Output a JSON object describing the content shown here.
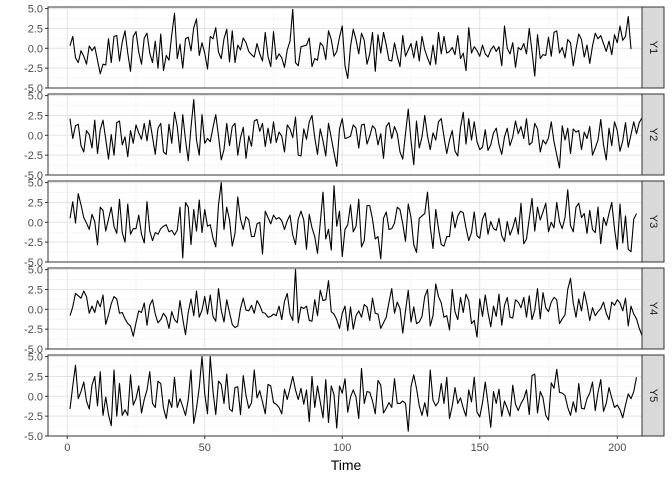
{
  "chart_data": {
    "type": "line",
    "xlabel": "Time",
    "x_ticks": [
      0,
      50,
      100,
      150,
      200
    ],
    "y_ticks": [
      -5.0,
      -2.5,
      0.0,
      2.5,
      5.0
    ],
    "y_tick_labels": [
      "-5.0",
      "-2.5",
      "0.0",
      "2.5",
      "5.0"
    ],
    "xlim": [
      -7,
      209
    ],
    "ylim": [
      -5.0,
      5.2
    ],
    "grid": true,
    "line_color": "#000000",
    "facet_strip_color": "#d9d9d9",
    "x_start": 1,
    "series": [
      {
        "name": "Y1",
        "values": [
          0.3,
          1.5,
          -1.2,
          -1.8,
          -0.3,
          -1.0,
          -2.0,
          0.3,
          -0.3,
          0.2,
          -1.5,
          -3.2,
          -2.0,
          -2.1,
          1.2,
          -1.8,
          1.5,
          1.6,
          -1.6,
          0.8,
          2.2,
          -0.6,
          -2.9,
          1.5,
          2.1,
          -0.5,
          -2.0,
          1.3,
          1.9,
          -0.6,
          -1.8,
          0.9,
          -2.5,
          1.8,
          -2.8,
          -0.9,
          -1.5,
          1.7,
          4.4,
          -1.3,
          0.5,
          -2.5,
          1.2,
          1.4,
          -0.3,
          2.6,
          3.7,
          -0.9,
          0.7,
          -0.6,
          -2.6,
          1.5,
          1.2,
          2.6,
          -0.5,
          -1.3,
          1.2,
          2.4,
          -1.7,
          2.2,
          -1.8,
          0.4,
          -0.2,
          1.3,
          0.7,
          -0.4,
          -0.8,
          -1.1,
          0.6,
          -0.7,
          -1.6,
          2.0,
          -1.0,
          -2.3,
          2.1,
          -1.4,
          -0.7,
          -1.2,
          -2.4,
          -0.2,
          0.9,
          4.9,
          -1.8,
          -2.2,
          0.2,
          0.3,
          0.4,
          1.3,
          -2.3,
          -1.3,
          -1.5,
          0.7,
          0.3,
          -1.4,
          2.2,
          1.1,
          -1.0,
          -0.4,
          1.4,
          2.8,
          -2.2,
          -3.8,
          0.2,
          2.4,
          1.1,
          -0.7,
          1.9,
          1.0,
          -2.0,
          -0.7,
          2.0,
          -2.9,
          1.7,
          -0.6,
          2.0,
          0.4,
          -1.5,
          -1.6,
          0.7,
          -1.0,
          -2.3,
          1.6,
          -1.0,
          -0.2,
          0.6,
          -1.2,
          0.9,
          -1.6,
          1.5,
          -0.2,
          -1.2,
          -2.1,
          0.4,
          -2.0,
          2.0,
          -0.7,
          1.5,
          -0.6,
          -0.4,
          0.1,
          -0.8,
          1.6,
          -1.3,
          -0.6,
          -2.8,
          2.6,
          -0.6,
          0.2,
          -0.3,
          -1.0,
          0.4,
          -0.7,
          -1.1,
          -0.2,
          0.3,
          -0.4,
          0.2,
          -2.2,
          2.8,
          0.0,
          -0.7,
          0.7,
          -2.4,
          0.1,
          -0.2,
          0.6,
          -0.7,
          2.5,
          -0.4,
          -3.5,
          1.7,
          -1.3,
          -0.8,
          -0.9,
          1.4,
          -1.0,
          2.0,
          2.2,
          -0.6,
          0.1,
          -1.2,
          1.1,
          0.7,
          -2.2,
          -0.1,
          1.8,
          1.1,
          -1.1,
          0.4,
          -1.9,
          0.3,
          1.9,
          1.2,
          1.6,
          0.6,
          -0.4,
          0.9,
          -0.8,
          1.7,
          0.7,
          2.8,
          1.0,
          1.5,
          4.0,
          -0.1
        ]
      },
      {
        "name": "Y2",
        "values": [
          2.1,
          -0.4,
          1.2,
          1.4,
          -1.3,
          -2.1,
          0.6,
          0.1,
          -1.6,
          1.9,
          -2.3,
          0.7,
          1.9,
          -0.5,
          -3.0,
          0.1,
          -2.5,
          1.6,
          1.8,
          -1.2,
          -0.2,
          -2.7,
          0.6,
          -1.0,
          1.3,
          0.3,
          -0.5,
          1.5,
          -0.7,
          1.9,
          -0.2,
          -2.4,
          0.9,
          1.5,
          -2.1,
          -2.4,
          1.4,
          -1.0,
          2.9,
          1.1,
          -2.2,
          2.6,
          -0.6,
          -3.2,
          1.0,
          4.5,
          -0.6,
          -2.5,
          2.6,
          -1.0,
          -0.4,
          -0.8,
          1.0,
          2.6,
          -0.1,
          -3.1,
          -1.8,
          1.5,
          -1.3,
          1.1,
          1.5,
          -2.5,
          -0.3,
          1.0,
          -2.9,
          -0.1,
          -1.4,
          1.8,
          2.0,
          0.5,
          1.5,
          -1.4,
          0.9,
          -1.0,
          1.7,
          -0.9,
          0.4,
          -0.1,
          -2.1,
          1.3,
          0.8,
          -0.3,
          2.3,
          -2.5,
          -2.6,
          0.8,
          -0.5,
          1.7,
          2.5,
          -0.3,
          -2.4,
          0.8,
          -0.7,
          -2.6,
          1.5,
          -0.3,
          -2.2,
          -3.9,
          0.8,
          2.1,
          -0.4,
          -0.3,
          -0.1,
          1.3,
          0.9,
          -1.6,
          1.3,
          1.4,
          -1.1,
          -0.1,
          1.2,
          0.8,
          -1.2,
          0.2,
          -2.9,
          1.1,
          1.6,
          -0.4,
          1.1,
          0.2,
          -2.1,
          -3.0,
          0.2,
          3.3,
          -0.7,
          -3.7,
          1.8,
          -1.6,
          -0.2,
          2.5,
          -0.1,
          -1.8,
          0.3,
          -0.6,
          1.7,
          2.1,
          -0.2,
          -2.3,
          -0.6,
          0.6,
          -2.0,
          -2.6,
          1.0,
          2.9,
          -1.1,
          2.1,
          -0.6,
          1.7,
          -0.8,
          -1.8,
          -1.5,
          0.7,
          -1.9,
          -1.2,
          0.3,
          0.9,
          -1.2,
          -2.4,
          -0.2,
          0.9,
          -1.3,
          -0.2,
          1.8,
          0.2,
          1.1,
          -0.4,
          2.1,
          -1.2,
          -0.9,
          1.5,
          0.8,
          -2.1,
          -0.6,
          -1.1,
          -0.3,
          1.7,
          -0.8,
          -2.5,
          -4.1,
          1.2,
          -0.6,
          0.9,
          -2.3,
          0.8,
          0.4,
          0.6,
          -1.8,
          0.4,
          -0.4,
          1.1,
          -2.5,
          -1.6,
          -0.6,
          2.0,
          -1.2,
          -3.1,
          0.9,
          -1.3,
          1.7,
          0.6,
          -2.0,
          -0.7,
          1.6,
          -1.5,
          0.1,
          1.7,
          0.2,
          1.6,
          2.2
        ]
      },
      {
        "name": "Y3",
        "values": [
          0.5,
          2.6,
          -0.1,
          3.6,
          2.2,
          0.6,
          -0.1,
          -0.9,
          1.0,
          0.1,
          -2.8,
          1.9,
          1.5,
          -1.1,
          0.4,
          1.9,
          -0.5,
          -1.4,
          2.9,
          -1.3,
          -2.5,
          2.3,
          -1.5,
          -0.8,
          -0.8,
          0.9,
          -1.5,
          -2.6,
          2.6,
          -1.1,
          -2.3,
          -1.3,
          -1.5,
          -0.8,
          -0.5,
          -0.3,
          -1.2,
          -1.0,
          -1.6,
          -1.0,
          1.9,
          -4.5,
          2.5,
          1.9,
          -2.8,
          1.6,
          -1.1,
          2.8,
          -1.3,
          1.6,
          -0.5,
          -0.3,
          -2.0,
          -3.1,
          2.2,
          5.0,
          -0.9,
          1.9,
          0.3,
          -3.0,
          -1.4,
          3.2,
          0.4,
          -0.9,
          0.7,
          0.3,
          -1.8,
          -1.8,
          -0.2,
          0.0,
          -4.0,
          1.4,
          0.6,
          -0.2,
          0.9,
          0.4,
          0.6,
          0.2,
          -0.9,
          0.2,
          0.9,
          -1.6,
          -2.8,
          0.4,
          1.4,
          0.3,
          -3.4,
          1.0,
          -0.7,
          -1.8,
          -3.9,
          -0.1,
          3.8,
          -2.1,
          -0.9,
          -3.5,
          4.6,
          -0.5,
          1.4,
          -4.3,
          -0.9,
          -0.3,
          2.2,
          -1.2,
          -0.5,
          2.9,
          -3.1,
          -2.3,
          2.1,
          2.1,
          0.4,
          -2.1,
          -1.8,
          -4.6,
          0.5,
          1.3,
          -0.9,
          -0.8,
          -0.1,
          1.9,
          1.6,
          -0.2,
          -2.4,
          2.3,
          0.6,
          -2.8,
          -3.8,
          0.5,
          0.8,
          1.1,
          3.8,
          -0.6,
          -3.3,
          1.6,
          -0.8,
          -2.8,
          -3.0,
          -1.8,
          -1.8,
          1.3,
          -0.7,
          0.8,
          1.4,
          1.2,
          -0.7,
          -2.3,
          -1.3,
          1.3,
          -1.7,
          -2.0,
          0.4,
          1.2,
          -1.5,
          0.1,
          -0.8,
          -1.0,
          0.5,
          -1.7,
          -2.4,
          0.1,
          -1.6,
          -0.7,
          0.6,
          -1.5,
          2.4,
          -2.7,
          -2.1,
          0.5,
          3.0,
          -1.1,
          1.9,
          0.3,
          1.3,
          2.4,
          -1.2,
          0.0,
          -0.7,
          2.5,
          0.1,
          -0.8,
          0.6,
          4.1,
          -0.4,
          -1.2,
          1.9,
          2.4,
          0.6,
          1.1,
          -1.4,
          1.5,
          -0.9,
          -1.3,
          1.9,
          -2.7,
          0.6,
          -0.4,
          1.1,
          2.5,
          -0.8,
          -3.4,
          2.3,
          -2.6,
          0.8,
          -3.4,
          -3.7,
          0.4,
          1.1
        ]
      },
      {
        "name": "Y4",
        "values": [
          -0.8,
          0.3,
          2.0,
          1.7,
          1.4,
          2.3,
          1.6,
          -0.5,
          0.4,
          -0.4,
          1.1,
          0.3,
          1.8,
          -1.9,
          -0.7,
          0.7,
          1.6,
          1.3,
          -0.5,
          -0.4,
          -1.2,
          -1.8,
          -2.1,
          -3.4,
          -1.7,
          -0.2,
          -0.4,
          0.8,
          -2.0,
          0.5,
          1.2,
          -0.6,
          -1.7,
          -1.3,
          -0.5,
          -1.0,
          -2.4,
          -0.3,
          -1.3,
          -1.7,
          1.1,
          -1.2,
          -3.2,
          -0.4,
          1.3,
          -0.8,
          2.3,
          -1.0,
          -0.1,
          1.6,
          -0.6,
          1.8,
          -0.9,
          -1.5,
          2.6,
          -0.1,
          -1.6,
          1.2,
          -0.4,
          -1.9,
          -2.3,
          -2.1,
          0.1,
          1.4,
          -0.1,
          -0.2,
          0.5,
          -0.5,
          1.1,
          0.5,
          -0.4,
          -0.5,
          -1.0,
          -0.9,
          -0.6,
          -0.8,
          0.4,
          -1.3,
          1.0,
          2.0,
          -0.6,
          -1.4,
          5.0,
          -1.7,
          0.3,
          0.1,
          0.4,
          -1.4,
          -1.5,
          1.2,
          -0.8,
          2.4,
          1.1,
          1.2,
          3.6,
          -0.3,
          -0.6,
          -1.3,
          -2.4,
          -0.5,
          0.4,
          -2.7,
          0.3,
          -2.5,
          -0.8,
          -0.2,
          -1.0,
          0.6,
          0.3,
          -1.4,
          1.4,
          -0.5,
          -0.6,
          -2.4,
          -1.7,
          -1.0,
          0.9,
          2.6,
          -0.5,
          0.9,
          0.1,
          -3.0,
          -0.2,
          2.4,
          -1.6,
          0.3,
          -1.8,
          -1.6,
          -0.9,
          1.6,
          2.5,
          -2.1,
          -0.8,
          3.2,
          1.6,
          0.8,
          -1.0,
          -0.8,
          -2.6,
          2.5,
          -0.3,
          -1.3,
          1.5,
          -0.4,
          1.9,
          1.1,
          -1.8,
          -1.4,
          -3.5,
          1.3,
          -0.9,
          1.8,
          -0.4,
          -2.2,
          0.4,
          -0.9,
          1.9,
          -2.0,
          0.5,
          1.5,
          -1.0,
          -1.1,
          1.2,
          0.9,
          0.2,
          1.5,
          -1.0,
          1.7,
          -1.3,
          -0.1,
          2.6,
          -1.2,
          2.1,
          0.2,
          -0.3,
          0.9,
          1.5,
          1.2,
          -1.8,
          -1.2,
          -0.7,
          2.5,
          3.9,
          0.8,
          -1.0,
          1.3,
          -0.2,
          2.2,
          0.6,
          -1.4,
          0.2,
          -0.8,
          -0.3,
          0.1,
          0.9,
          -0.5,
          -1.3,
          0.9,
          0.5,
          1.2,
          0.8,
          -0.2,
          1.4,
          -2.1,
          0.4,
          -0.6,
          -1.2,
          -2.4,
          -3.3,
          -0.1
        ]
      },
      {
        "name": "Y5",
        "values": [
          -1.6,
          1.3,
          3.9,
          -0.3,
          0.6,
          1.8,
          -0.6,
          -1.6,
          1.4,
          2.5,
          -1.2,
          3.1,
          -2.4,
          -0.1,
          -2.3,
          -3.7,
          3.3,
          -2.5,
          1.6,
          -2.4,
          -1.7,
          -2.4,
          2.7,
          -1.1,
          -0.3,
          1.3,
          -2.1,
          -0.4,
          0.8,
          3.1,
          -0.9,
          -1.4,
          1.9,
          1.6,
          -1.5,
          -2.8,
          -0.4,
          -1.4,
          2.4,
          -1.4,
          -0.3,
          -1.3,
          -2.4,
          -0.4,
          3.3,
          -3.4,
          -1.5,
          1.1,
          5.0,
          0.3,
          -2.2,
          5.0,
          0.6,
          -2.3,
          1.9,
          1.5,
          -0.9,
          2.8,
          -1.6,
          -1.9,
          1.1,
          1.2,
          -2.3,
          2.6,
          0.1,
          -1.5,
          -0.8,
          3.3,
          -0.2,
          0.7,
          -0.7,
          -2.2,
          1.5,
          1.3,
          -0.8,
          -1.0,
          -1.4,
          -2.2,
          0.9,
          -0.4,
          1.0,
          2.5,
          0.8,
          -0.4,
          1.0,
          -1.0,
          0.8,
          -3.2,
          2.5,
          -1.4,
          1.3,
          -0.7,
          -2.7,
          2.1,
          -3.3,
          1.3,
          0.2,
          -4.0,
          1.3,
          0.4,
          2.2,
          -2.0,
          -0.1,
          0.8,
          -0.1,
          -2.8,
          3.5,
          -0.9,
          0.6,
          0.5,
          -0.6,
          -2.2,
          2.0,
          1.4,
          -2.1,
          -1.5,
          -0.8,
          -1.4,
          2.2,
          -0.9,
          -0.9,
          -0.6,
          -0.9,
          -4.4,
          1.2,
          2.7,
          1.0,
          -1.2,
          -2.4,
          -0.8,
          -2.5,
          3.3,
          -0.5,
          -1.2,
          -0.7,
          1.6,
          -0.9,
          2.4,
          -2.8,
          -1.2,
          1.1,
          -0.9,
          -0.2,
          -1.5,
          -2.5,
          0.8,
          -0.7,
          2.4,
          -2.0,
          -2.6,
          -0.8,
          1.8,
          -0.9,
          -3.9,
          0.6,
          -0.9,
          0.9,
          -2.5,
          -0.6,
          -1.5,
          -2.5,
          1.4,
          -1.0,
          -1.8,
          -0.9,
          -0.3,
          0.8,
          -2.3,
          2.6,
          2.8,
          -2.1,
          0.6,
          -0.2,
          -2.4,
          -3.0,
          1.7,
          1.0,
          3.4,
          0.5,
          0.4,
          0.1,
          -1.4,
          -2.4,
          -0.7,
          -2.0,
          1.6,
          -1.5,
          -1.6,
          -0.3,
          0.4,
          1.8,
          -1.8,
          0.5,
          2.1,
          -1.9,
          -0.9,
          1.1,
          -0.2,
          -1.4,
          -1.1,
          -1.7,
          -2.7,
          -1.1,
          0.3,
          -0.3,
          0.6,
          2.4
        ]
      }
    ]
  }
}
